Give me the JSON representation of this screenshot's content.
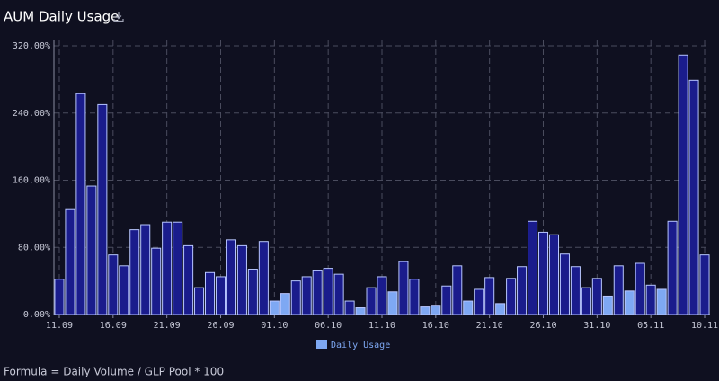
{
  "chart_data": {
    "type": "bar",
    "title": "AUM Daily Usage",
    "footnote": "Formula = Daily Volume / GLP Pool * 100",
    "categories": [
      "11.09",
      null,
      null,
      null,
      null,
      "16.09",
      null,
      null,
      null,
      null,
      "21.09",
      null,
      null,
      null,
      null,
      "26.09",
      null,
      null,
      null,
      null,
      "01.10",
      null,
      null,
      null,
      null,
      "06.10",
      null,
      null,
      null,
      null,
      "11.10",
      null,
      null,
      null,
      null,
      "16.10",
      null,
      null,
      null,
      null,
      "21.10",
      null,
      null,
      null,
      null,
      "26.10",
      null,
      null,
      null,
      null,
      "31.10",
      null,
      null,
      null,
      null,
      "05.11",
      null,
      null,
      null,
      null,
      "10.11"
    ],
    "series": [
      {
        "name": "Daily Usage",
        "color": "#7ea8f3",
        "values": [
          42,
          125,
          263,
          153,
          250,
          71,
          58,
          101,
          107,
          79,
          110,
          110,
          82,
          32,
          50,
          45,
          89,
          82,
          54,
          87,
          16,
          25,
          40,
          45,
          52,
          55,
          48,
          16,
          8,
          32,
          45,
          27,
          63,
          42,
          9,
          11,
          34,
          58,
          16,
          30,
          44,
          13,
          43,
          57,
          111,
          98,
          95,
          72,
          57,
          32,
          43,
          22,
          58,
          28,
          61,
          35,
          30,
          111,
          309,
          279,
          71
        ],
        "colors": [
          "#1a1c8c",
          "#1a1c8c",
          "#1a1c8c",
          "#1a1c8c",
          "#1a1c8c",
          "#1a1c8c",
          "#1a1c8c",
          "#1a1c8c",
          "#1a1c8c",
          "#1a1c8c",
          "#1a1c8c",
          "#1a1c8c",
          "#1a1c8c",
          "#1a1c8c",
          "#1a1c8c",
          "#1a1c8c",
          "#1a1c8c",
          "#1a1c8c",
          "#1a1c8c",
          "#1a1c8c",
          "#7ea8f3",
          "#7ea8f3",
          "#1a1c8c",
          "#1a1c8c",
          "#1a1c8c",
          "#1a1c8c",
          "#1a1c8c",
          "#1a1c8c",
          "#7ea8f3",
          "#1a1c8c",
          "#1a1c8c",
          "#7ea8f3",
          "#1a1c8c",
          "#1a1c8c",
          "#7ea8f3",
          "#7ea8f3",
          "#1a1c8c",
          "#1a1c8c",
          "#7ea8f3",
          "#1a1c8c",
          "#1a1c8c",
          "#7ea8f3",
          "#1a1c8c",
          "#1a1c8c",
          "#1a1c8c",
          "#1a1c8c",
          "#1a1c8c",
          "#1a1c8c",
          "#1a1c8c",
          "#1a1c8c",
          "#1a1c8c",
          "#7ea8f3",
          "#1a1c8c",
          "#7ea8f3",
          "#1a1c8c",
          "#1a1c8c",
          "#7ea8f3",
          "#1a1c8c",
          "#1a1c8c",
          "#1a1c8c",
          "#1a1c8c"
        ]
      }
    ],
    "ylim": [
      0,
      320
    ],
    "yticks": [
      {
        "value": 0,
        "label": "0.00%"
      },
      {
        "value": 80,
        "label": "80.00%"
      },
      {
        "value": 160,
        "label": "160.00%"
      },
      {
        "value": 240,
        "label": "240.00%"
      },
      {
        "value": 320,
        "label": "320.00%"
      }
    ],
    "grid": true
  }
}
